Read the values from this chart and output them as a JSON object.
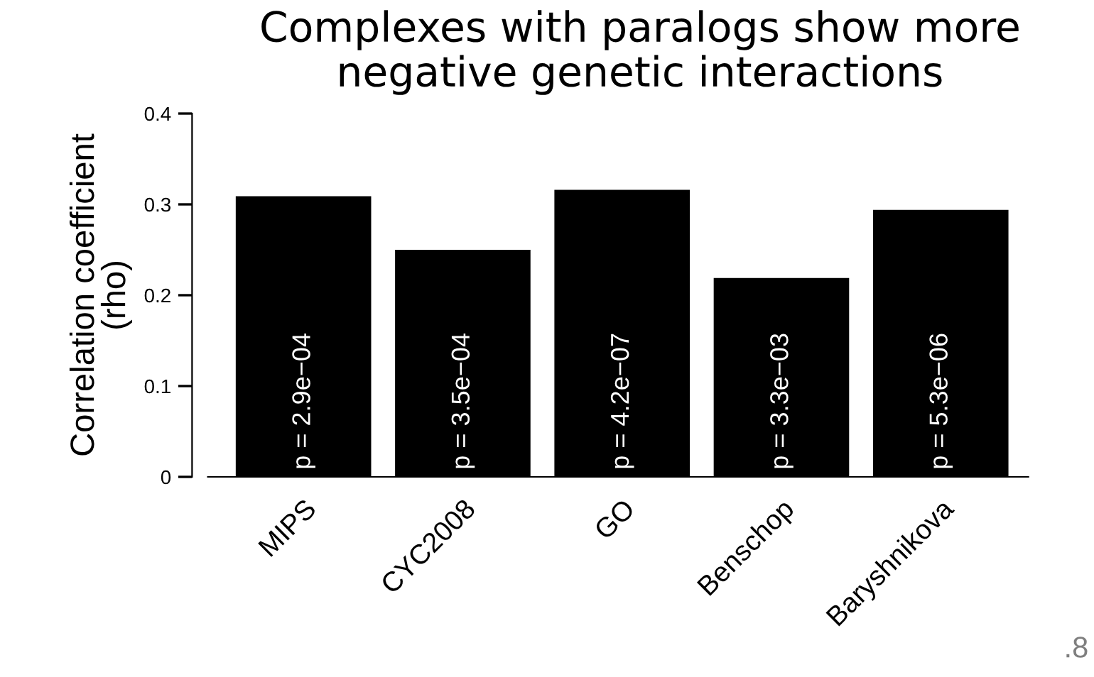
{
  "chart_data": {
    "type": "bar",
    "title": "Complexes with paralogs show more\nnegative genetic interactions",
    "ylabel": "Correlation coefficient\n(rho)",
    "categories": [
      "MIPS",
      "CYC2008",
      "GO",
      "Benschop",
      "Baryshnikova"
    ],
    "values": [
      0.309,
      0.25,
      0.316,
      0.219,
      0.294
    ],
    "value_labels": [
      "p = 2.9e−04",
      "p = 3.5e−04",
      "p = 4.2e−07",
      "p = 3.3e−03",
      "p = 5.3e−06"
    ],
    "color": "#000000",
    "ylim": [
      0,
      0.4
    ],
    "yticks": [
      {
        "value": 0,
        "label": "0"
      },
      0.1,
      0.2,
      0.3,
      0.4
    ],
    "grid": false,
    "annotations": [
      ".8"
    ]
  }
}
